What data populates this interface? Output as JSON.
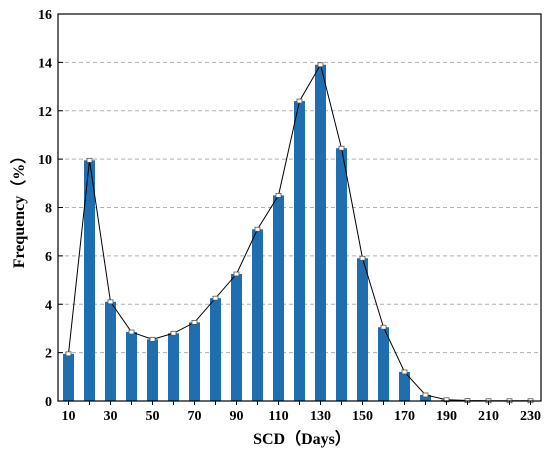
{
  "chart_data": {
    "type": "bar",
    "title": "",
    "xlabel": "SCD（Days）",
    "ylabel": "Frequency（%）",
    "x": [
      10,
      20,
      30,
      40,
      50,
      60,
      70,
      80,
      90,
      100,
      110,
      120,
      130,
      140,
      150,
      160,
      170,
      180,
      190,
      200,
      210,
      220,
      230
    ],
    "xticks": [
      10,
      30,
      50,
      70,
      90,
      110,
      130,
      150,
      170,
      190,
      210,
      230
    ],
    "values": [
      1.95,
      9.95,
      4.1,
      2.85,
      2.55,
      2.8,
      3.25,
      4.25,
      5.25,
      7.1,
      8.5,
      12.4,
      13.9,
      10.45,
      5.9,
      3.05,
      1.2,
      0.25,
      0.05,
      0.02,
      0.01,
      0.01,
      0.01
    ],
    "ylim": [
      0,
      16
    ],
    "yticks": [
      0,
      2,
      4,
      6,
      8,
      10,
      12,
      14,
      16
    ],
    "grid": "horizontal-dashed",
    "line_overlay": true,
    "colors": {
      "bar": "#1f6fb0",
      "line": "#000000",
      "grid": "#b0b0b0"
    }
  }
}
